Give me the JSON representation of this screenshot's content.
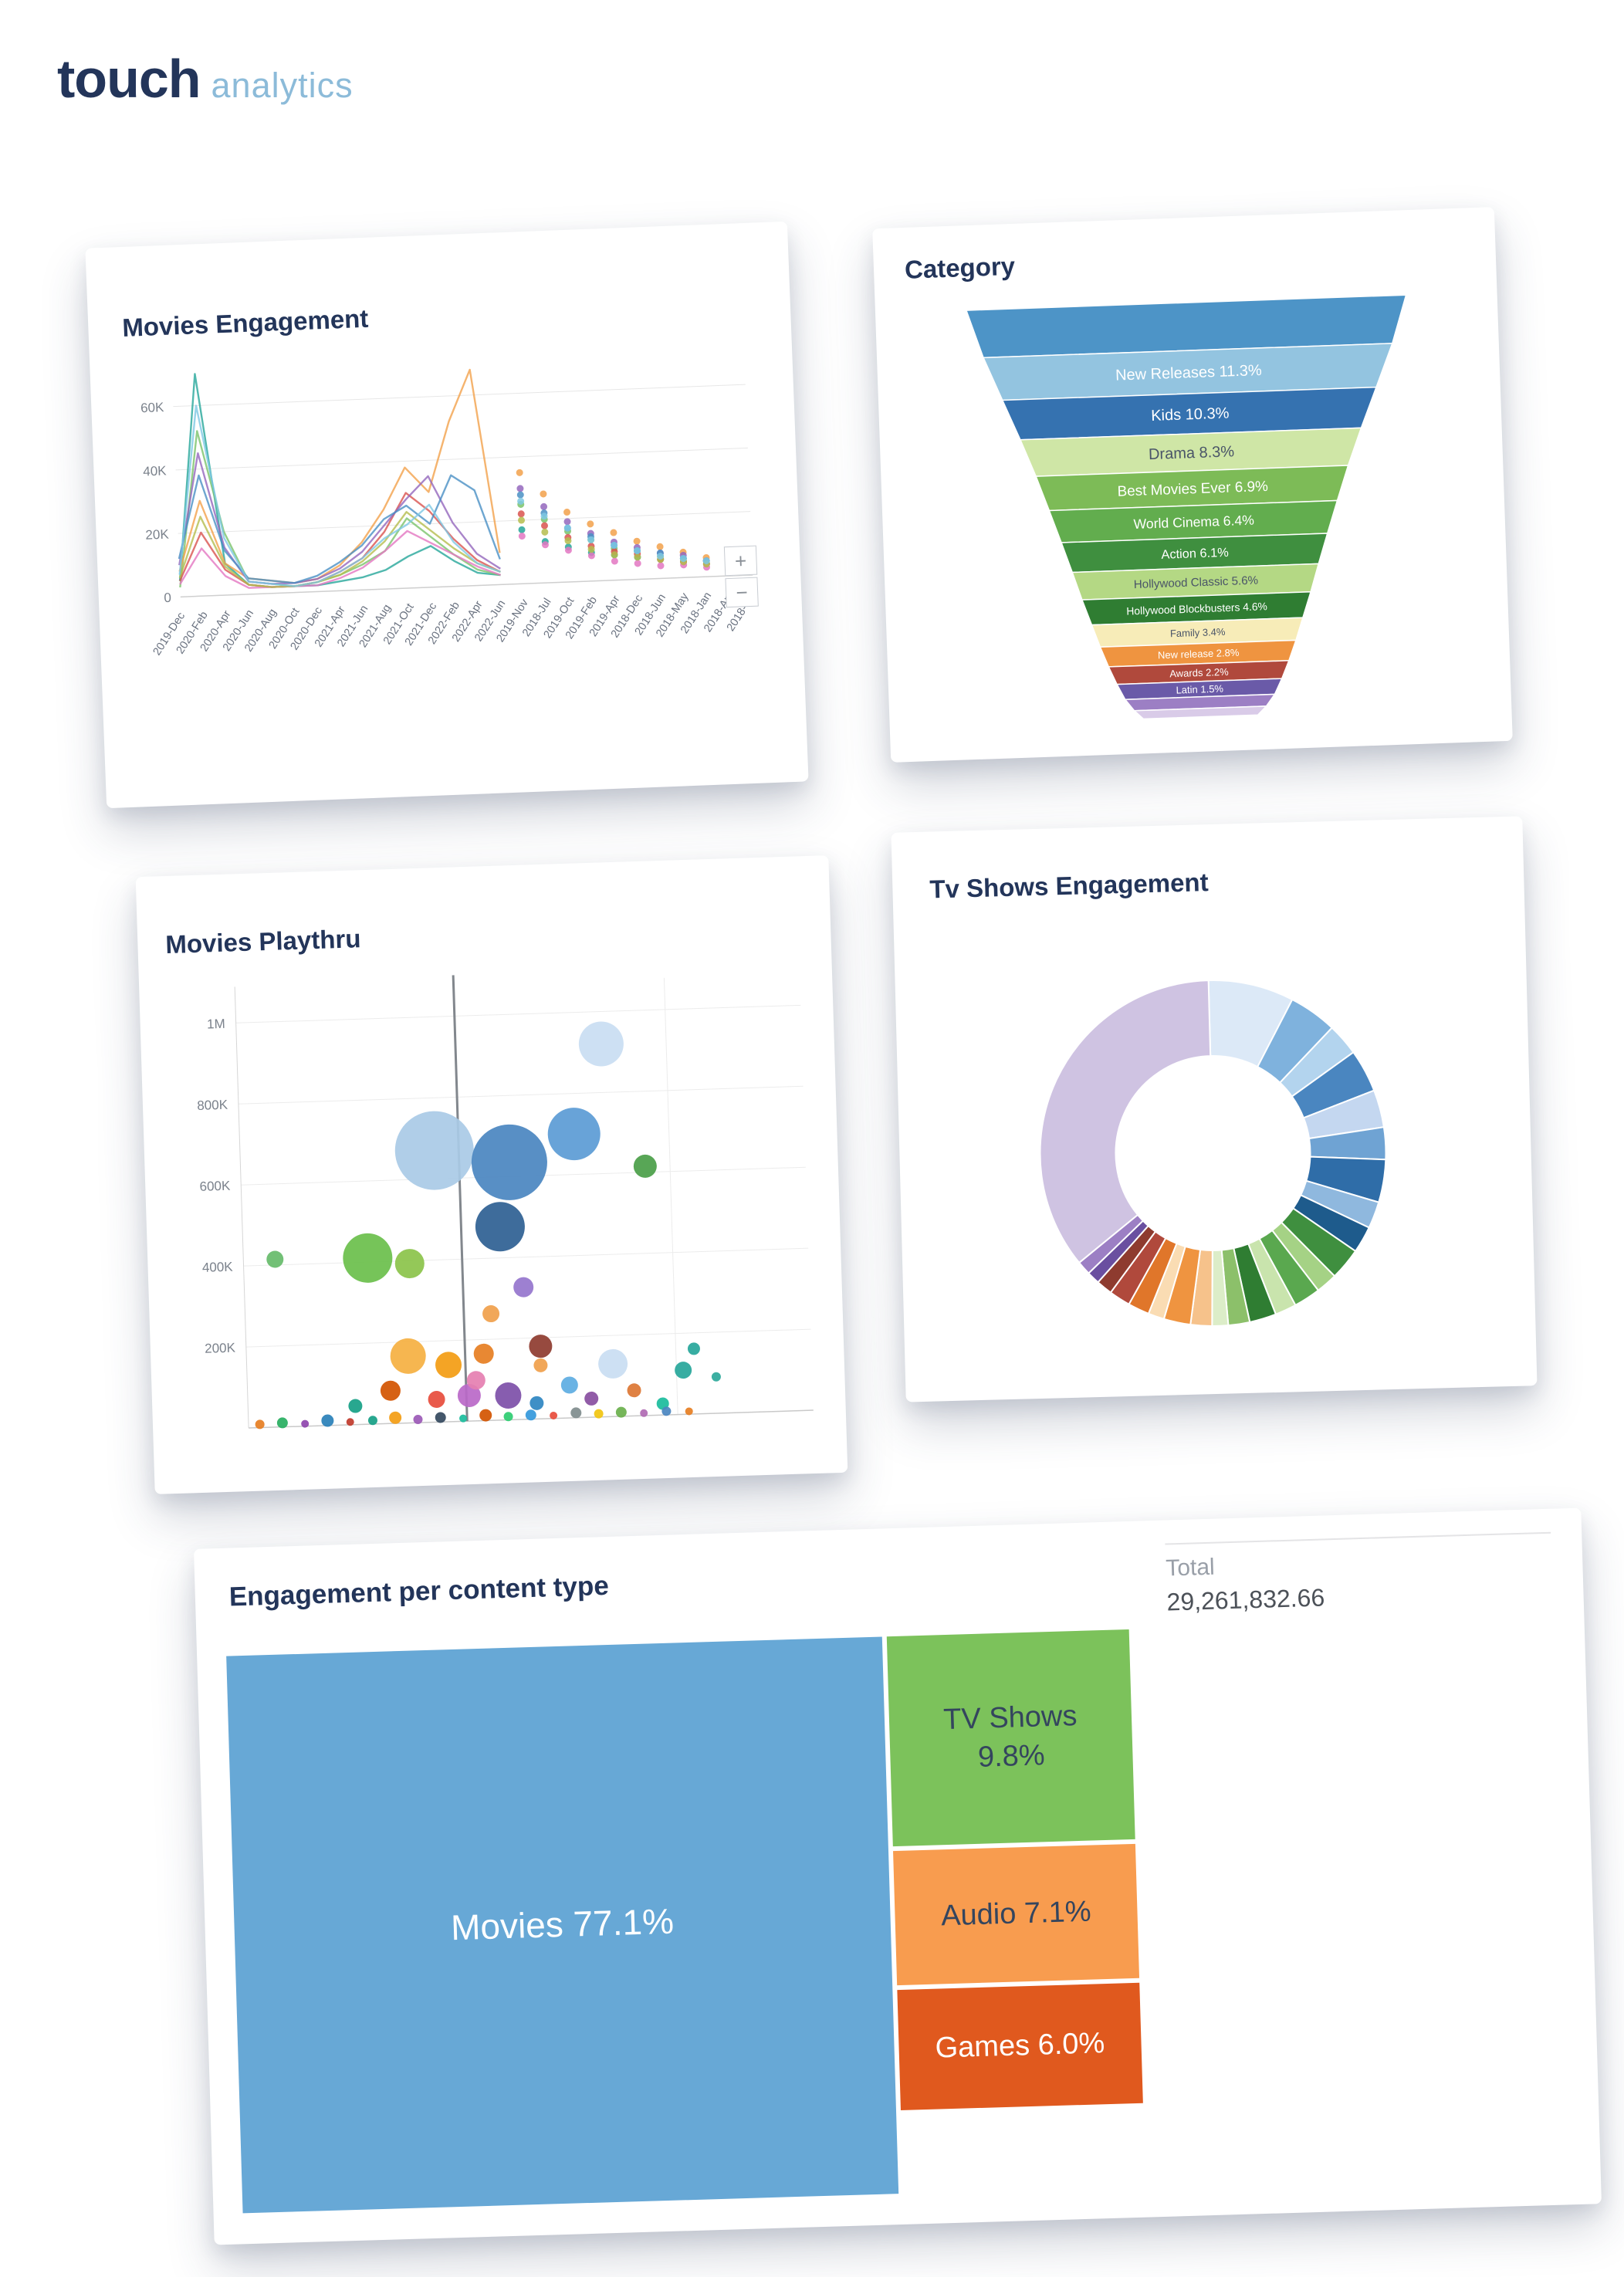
{
  "brand": {
    "logo_primary": "touch",
    "logo_secondary": "analytics",
    "primary_color": "#23355a",
    "secondary_color": "#8cbbd9"
  },
  "cards": {
    "movies_engagement": {
      "title": "Movies Engagement",
      "zoom_in": "+",
      "zoom_out": "−"
    },
    "category": {
      "title": "Category"
    },
    "movies_playthru": {
      "title": "Movies Playthru"
    },
    "tv_shows": {
      "title": "Tv Shows Engagement"
    },
    "content_type": {
      "title": "Engagement per content type",
      "total_label": "Total",
      "total_value": "29,261,832.66"
    }
  },
  "chart_data": [
    {
      "id": "movies_engagement",
      "type": "line",
      "title": "Movies Engagement",
      "ylim": [
        0,
        70000
      ],
      "values_unit": "thousands",
      "grid": true,
      "legend": false,
      "line_until_index": 14,
      "y_ticks": [
        {
          "v": 0,
          "label": "0"
        },
        {
          "v": 20,
          "label": "20K"
        },
        {
          "v": 40,
          "label": "40K"
        },
        {
          "v": 60,
          "label": "60K"
        }
      ],
      "x": [
        "2019-Dec",
        "2020-Feb",
        "2020-Apr",
        "2020-Jun",
        "2020-Aug",
        "2020-Oct",
        "2020-Dec",
        "2021-Apr",
        "2021-Jun",
        "2021-Aug",
        "2021-Oct",
        "2021-Dec",
        "2022-Feb",
        "2022-Apr",
        "2022-Jun",
        "2019-Nov",
        "2018-Jul",
        "2019-Oct",
        "2019-Feb",
        "2019-Apr",
        "2018-Dec",
        "2018-Jun",
        "2018-May",
        "2018-Jan",
        "2018-Apr",
        "2018-Oct"
      ],
      "series": [
        {
          "name": "series-1",
          "color": "#26a69a",
          "values": [
            5,
            70,
            10,
            3,
            2,
            2,
            2,
            3,
            4,
            6,
            10,
            13,
            8,
            4,
            3,
            17,
            13,
            11,
            9,
            8,
            7,
            6,
            5,
            4,
            3,
            3
          ]
        },
        {
          "name": "series-2",
          "color": "#7ac36a",
          "values": [
            3,
            52,
            20,
            4,
            3,
            2,
            3,
            5,
            8,
            12,
            22,
            16,
            10,
            5,
            3,
            25,
            20,
            16,
            13,
            10,
            9,
            7,
            6,
            5,
            4,
            3
          ]
        },
        {
          "name": "series-3",
          "color": "#f2a14b",
          "values": [
            8,
            30,
            10,
            5,
            4,
            3,
            4,
            8,
            15,
            25,
            38,
            30,
            52,
            68,
            10,
            35,
            28,
            22,
            18,
            15,
            12,
            10,
            8,
            6,
            5,
            4
          ]
        },
        {
          "name": "series-4",
          "color": "#d9534f",
          "values": [
            5,
            20,
            8,
            3,
            2,
            2,
            3,
            6,
            10,
            18,
            30,
            24,
            15,
            8,
            4,
            22,
            18,
            14,
            11,
            9,
            8,
            6,
            5,
            4,
            3,
            2
          ]
        },
        {
          "name": "series-5",
          "color": "#9467bd",
          "values": [
            10,
            45,
            15,
            4,
            3,
            3,
            4,
            7,
            12,
            20,
            28,
            35,
            20,
            10,
            5,
            30,
            24,
            19,
            15,
            12,
            10,
            8,
            7,
            5,
            4,
            3
          ]
        },
        {
          "name": "series-6",
          "color": "#4a90c4",
          "values": [
            12,
            38,
            14,
            5,
            4,
            3,
            5,
            9,
            14,
            22,
            26,
            20,
            35,
            30,
            8,
            28,
            22,
            17,
            14,
            11,
            9,
            8,
            6,
            5,
            4,
            3
          ]
        },
        {
          "name": "series-7",
          "color": "#e377c2",
          "values": [
            4,
            15,
            6,
            2,
            2,
            2,
            2,
            4,
            7,
            12,
            18,
            14,
            10,
            6,
            3,
            15,
            12,
            10,
            8,
            6,
            5,
            4,
            4,
            3,
            2,
            2
          ]
        },
        {
          "name": "series-8",
          "color": "#b5bd4e",
          "values": [
            6,
            25,
            9,
            3,
            2,
            2,
            3,
            5,
            9,
            15,
            24,
            18,
            12,
            7,
            4,
            20,
            16,
            13,
            10,
            8,
            7,
            6,
            5,
            4,
            3,
            2
          ]
        },
        {
          "name": "series-9",
          "color": "#7ec8e3",
          "values": [
            7,
            60,
            18,
            4,
            3,
            2,
            3,
            6,
            10,
            16,
            20,
            26,
            14,
            7,
            4,
            26,
            21,
            17,
            13,
            11,
            9,
            7,
            6,
            5,
            4,
            3
          ]
        }
      ]
    },
    {
      "id": "category",
      "type": "funnel",
      "title": "Category",
      "segments": [
        {
          "label": "",
          "display": "",
          "pct": null,
          "color": "#4d94c7",
          "text_color": "#ffffff"
        },
        {
          "label": "New Releases",
          "display": "New Releases 11.3%",
          "pct": 11.3,
          "color": "#93c4e0",
          "text_color": "#ffffff"
        },
        {
          "label": "Kids",
          "display": "Kids 10.3%",
          "pct": 10.3,
          "color": "#3572b0",
          "text_color": "#ffffff"
        },
        {
          "label": "Drama",
          "display": "Drama 8.3%",
          "pct": 8.3,
          "color": "#cfe6a6",
          "text_color": "#4a5568"
        },
        {
          "label": "Best Movies Ever",
          "display": "Best Movies Ever 6.9%",
          "pct": 6.9,
          "color": "#7dbb57",
          "text_color": "#ffffff"
        },
        {
          "label": "World Cinema",
          "display": "World Cinema 6.4%",
          "pct": 6.4,
          "color": "#62ad4e",
          "text_color": "#ffffff"
        },
        {
          "label": "Action",
          "display": "Action 6.1%",
          "pct": 6.1,
          "color": "#3f8f3f",
          "text_color": "#ffffff"
        },
        {
          "label": "Hollywood Classic",
          "display": "Hollywood Classic 5.6%",
          "pct": 5.6,
          "color": "#b4d884",
          "text_color": "#4a5568"
        },
        {
          "label": "Hollywood Blockbusters",
          "display": "Hollywood Blockbusters 4.6%",
          "pct": 4.6,
          "color": "#2f7d32",
          "text_color": "#ffffff"
        },
        {
          "label": "Family",
          "display": "Family 3.4%",
          "pct": 3.4,
          "color": "#f7ecb8",
          "text_color": "#4a5568"
        },
        {
          "label": "New release",
          "display": "New release 2.8%",
          "pct": 2.8,
          "color": "#ef9440",
          "text_color": "#ffffff"
        },
        {
          "label": "Awards",
          "display": "Awards 2.2%",
          "pct": 2.2,
          "color": "#b0493c",
          "text_color": "#ffffff"
        },
        {
          "label": "Latin",
          "display": "Latin 1.5%",
          "pct": 1.5,
          "color": "#6a5aa8",
          "text_color": "#ffffff"
        },
        {
          "label": "",
          "display": "",
          "pct": null,
          "color": "#9c7fc4",
          "text_color": "#ffffff"
        },
        {
          "label": "",
          "display": "",
          "pct": null,
          "color": "#d9cbe8",
          "text_color": "#4a5568"
        }
      ]
    },
    {
      "id": "movies_playthru",
      "type": "scatter",
      "title": "Movies Playthru",
      "ylim": [
        0,
        1000000
      ],
      "grid": true,
      "reference_line_x": 0.387,
      "y_ticks": [
        {
          "v": 200,
          "label": "200K"
        },
        {
          "v": 400,
          "label": "400K"
        },
        {
          "v": 600,
          "label": "600K"
        },
        {
          "v": 800,
          "label": "800K"
        },
        {
          "v": 1000,
          "label": "1M"
        }
      ],
      "bubbles": [
        {
          "x": 0.645,
          "y": 920,
          "r": 29,
          "color": "#c9ddf2"
        },
        {
          "x": 0.344,
          "y": 670,
          "r": 51,
          "color": "#a9cae6"
        },
        {
          "x": 0.476,
          "y": 635,
          "r": 49,
          "color": "#4a86c0"
        },
        {
          "x": 0.592,
          "y": 700,
          "r": 34,
          "color": "#5b9bd5"
        },
        {
          "x": 0.456,
          "y": 477,
          "r": 32,
          "color": "#2e6093"
        },
        {
          "x": 0.716,
          "y": 615,
          "r": 15,
          "color": "#4a9e48"
        },
        {
          "x": 0.22,
          "y": 410,
          "r": 32,
          "color": "#6abf4b"
        },
        {
          "x": 0.294,
          "y": 393,
          "r": 19,
          "color": "#8bc34a"
        },
        {
          "x": 0.056,
          "y": 414,
          "r": 11,
          "color": "#66bb6a"
        },
        {
          "x": 0.494,
          "y": 326,
          "r": 13,
          "color": "#9575cd"
        },
        {
          "x": 0.435,
          "y": 263,
          "r": 11,
          "color": "#f0a04b"
        },
        {
          "x": 0.286,
          "y": 165,
          "r": 23,
          "color": "#f5b041"
        },
        {
          "x": 0.357,
          "y": 140,
          "r": 17,
          "color": "#f39c12"
        },
        {
          "x": 0.42,
          "y": 165,
          "r": 13,
          "color": "#e67e22"
        },
        {
          "x": 0.521,
          "y": 179,
          "r": 15,
          "color": "#8e3b2f"
        },
        {
          "x": 0.461,
          "y": 60,
          "r": 17,
          "color": "#7d4fa8"
        },
        {
          "x": 0.392,
          "y": 63,
          "r": 15,
          "color": "#ba68c8"
        },
        {
          "x": 0.648,
          "y": 130,
          "r": 19,
          "color": "#c9ddf2"
        },
        {
          "x": 0.772,
          "y": 109,
          "r": 11,
          "color": "#26a69a"
        },
        {
          "x": 0.57,
          "y": 81,
          "r": 11,
          "color": "#5dade2"
        },
        {
          "x": 0.334,
          "y": 56,
          "r": 11,
          "color": "#e74c3c"
        },
        {
          "x": 0.253,
          "y": 81,
          "r": 13,
          "color": "#d35400"
        },
        {
          "x": 0.19,
          "y": 46,
          "r": 9,
          "color": "#16a085"
        },
        {
          "x": 0.511,
          "y": 39,
          "r": 9,
          "color": "#2e86c1"
        },
        {
          "x": 0.608,
          "y": 46,
          "r": 9,
          "color": "#884ea0"
        },
        {
          "x": 0.684,
          "y": 63,
          "r": 9,
          "color": "#dc7633"
        },
        {
          "x": 0.734,
          "y": 28,
          "r": 8,
          "color": "#1abc9c"
        },
        {
          "x": 0.792,
          "y": 161,
          "r": 8,
          "color": "#26a69a"
        },
        {
          "x": 0.405,
          "y": 100,
          "r": 12,
          "color": "#e57fb1"
        },
        {
          "x": 0.52,
          "y": 132,
          "r": 9,
          "color": "#f0a04b"
        },
        {
          "x": 0.83,
          "y": 90,
          "r": 6,
          "color": "#2ca89a"
        },
        {
          "x": 0.02,
          "y": 8,
          "r": 6,
          "color": "#e67e22"
        },
        {
          "x": 0.06,
          "y": 10,
          "r": 7,
          "color": "#27ae60"
        },
        {
          "x": 0.1,
          "y": 6,
          "r": 5,
          "color": "#8e44ad"
        },
        {
          "x": 0.14,
          "y": 12,
          "r": 8,
          "color": "#2980b9"
        },
        {
          "x": 0.18,
          "y": 7,
          "r": 5,
          "color": "#c0392b"
        },
        {
          "x": 0.22,
          "y": 9,
          "r": 6,
          "color": "#16a085"
        },
        {
          "x": 0.26,
          "y": 14,
          "r": 8,
          "color": "#f39c12"
        },
        {
          "x": 0.3,
          "y": 8,
          "r": 6,
          "color": "#9b59b6"
        },
        {
          "x": 0.34,
          "y": 11,
          "r": 7,
          "color": "#34495e"
        },
        {
          "x": 0.38,
          "y": 7,
          "r": 5,
          "color": "#1abc9c"
        },
        {
          "x": 0.42,
          "y": 13,
          "r": 8,
          "color": "#d35400"
        },
        {
          "x": 0.46,
          "y": 8,
          "r": 6,
          "color": "#2ecc71"
        },
        {
          "x": 0.5,
          "y": 10,
          "r": 7,
          "color": "#3498db"
        },
        {
          "x": 0.54,
          "y": 7,
          "r": 5,
          "color": "#e74c3c"
        },
        {
          "x": 0.58,
          "y": 12,
          "r": 7,
          "color": "#7f8c8d"
        },
        {
          "x": 0.62,
          "y": 8,
          "r": 6,
          "color": "#f1c40f"
        },
        {
          "x": 0.66,
          "y": 10,
          "r": 7,
          "color": "#6ab04c"
        },
        {
          "x": 0.7,
          "y": 6,
          "r": 5,
          "color": "#b06ab3"
        },
        {
          "x": 0.74,
          "y": 9,
          "r": 6,
          "color": "#4a86c0"
        },
        {
          "x": 0.78,
          "y": 7,
          "r": 5,
          "color": "#e67e22"
        }
      ]
    },
    {
      "id": "tv_shows_engagement",
      "type": "pie",
      "donut": true,
      "title": "Tv Shows Engagement",
      "start_angle_deg": 0,
      "slices": [
        {
          "value": 8.0,
          "color": "#dce9f7"
        },
        {
          "value": 4.5,
          "color": "#7fb2dd"
        },
        {
          "value": 3.0,
          "color": "#b3d4ee"
        },
        {
          "value": 4.0,
          "color": "#4a86c0"
        },
        {
          "value": 3.5,
          "color": "#c4d7f0"
        },
        {
          "value": 3.0,
          "color": "#6fa3d3"
        },
        {
          "value": 4.0,
          "color": "#2f6da8"
        },
        {
          "value": 2.5,
          "color": "#8fb8de"
        },
        {
          "value": 2.5,
          "color": "#1e5b8c"
        },
        {
          "value": 3.0,
          "color": "#3f8f3f"
        },
        {
          "value": 2.0,
          "color": "#a5d285"
        },
        {
          "value": 2.5,
          "color": "#5aa84f"
        },
        {
          "value": 2.0,
          "color": "#c9e4ad"
        },
        {
          "value": 2.5,
          "color": "#2f7d32"
        },
        {
          "value": 2.0,
          "color": "#8cc06a"
        },
        {
          "value": 1.5,
          "color": "#dcedc8"
        },
        {
          "value": 2.0,
          "color": "#f6c28b"
        },
        {
          "value": 2.5,
          "color": "#ef9440"
        },
        {
          "value": 1.5,
          "color": "#fadcb3"
        },
        {
          "value": 2.0,
          "color": "#e0762a"
        },
        {
          "value": 2.0,
          "color": "#b0493c"
        },
        {
          "value": 1.5,
          "color": "#8e3b2f"
        },
        {
          "value": 1.2,
          "color": "#6a4fa0"
        },
        {
          "value": 1.3,
          "color": "#9c7fc4"
        },
        {
          "value": 35.5,
          "color": "#cfc3e2"
        }
      ]
    },
    {
      "id": "engagement_per_content_type",
      "type": "treemap",
      "title": "Engagement per content type",
      "total_label": "Total",
      "total_value": "29,261,832.66",
      "blocks": [
        {
          "name": "Movies",
          "display": "Movies 77.1%",
          "lines": [
            "Movies 77.1%"
          ],
          "value": 77.1,
          "color": "#67a8d6",
          "text_color": "#ffffff"
        },
        {
          "name": "TV Shows",
          "display": "TV Shows 9.8%",
          "lines": [
            "TV Shows",
            "9.8%"
          ],
          "value": 9.8,
          "color": "#7cc25b",
          "text_color": "#34455e"
        },
        {
          "name": "Audio",
          "display": "Audio 7.1%",
          "lines": [
            "Audio 7.1%"
          ],
          "value": 7.1,
          "color": "#f89c4f",
          "text_color": "#34455e"
        },
        {
          "name": "Games",
          "display": "Games 6.0%",
          "lines": [
            "Games 6.0%"
          ],
          "value": 6.0,
          "color": "#e0591e",
          "text_color": "#ffffff"
        }
      ]
    }
  ]
}
